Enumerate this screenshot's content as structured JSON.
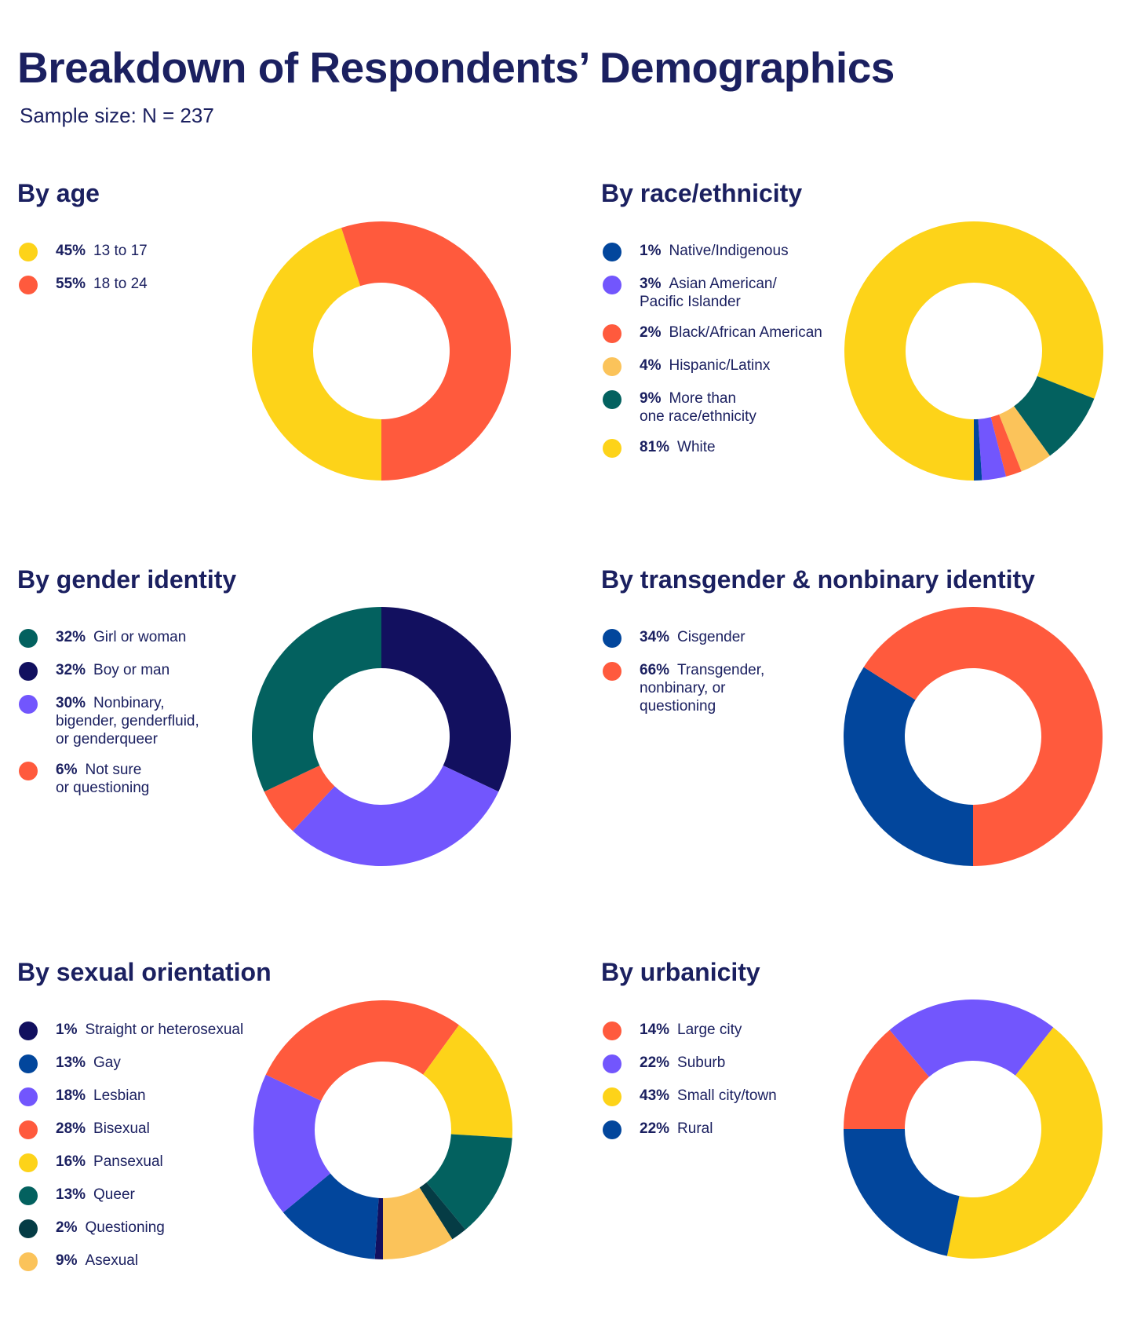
{
  "header": {
    "title": "Breakdown of Respondents’ Demographics",
    "subtitle": "Sample size: N = 237"
  },
  "chart_data": [
    {
      "id": "age",
      "type": "pie",
      "title": "By age",
      "slices": [
        {
          "pct": "45%",
          "label": "13 to 17",
          "value": 45,
          "color": "#fdd319"
        },
        {
          "pct": "55%",
          "label": "18 to 24",
          "value": 55,
          "color": "#ff5a3d"
        }
      ]
    },
    {
      "id": "race",
      "type": "pie",
      "title": "By race/ethnicity",
      "slices": [
        {
          "pct": "1%",
          "label": "Native/Indigenous",
          "value": 1,
          "color": "#02469c"
        },
        {
          "pct": "3%",
          "label": "Asian American/\nPacific Islander",
          "value": 3,
          "color": "#7256fd"
        },
        {
          "pct": "2%",
          "label": "Black/African American",
          "value": 2,
          "color": "#ff5a3d"
        },
        {
          "pct": "4%",
          "label": "Hispanic/Latinx",
          "value": 4,
          "color": "#fbc35a"
        },
        {
          "pct": "9%",
          "label": "More than\none race/ethnicity",
          "value": 9,
          "color": "#03615f"
        },
        {
          "pct": "81%",
          "label": "White",
          "value": 81,
          "color": "#fdd319"
        }
      ]
    },
    {
      "id": "gender",
      "type": "pie",
      "title": "By gender identity",
      "slices": [
        {
          "pct": "32%",
          "label": "Girl or woman",
          "value": 32,
          "color": "#03615f"
        },
        {
          "pct": "32%",
          "label": "Boy or man",
          "value": 32,
          "color": "#12105f"
        },
        {
          "pct": "30%",
          "label": "Nonbinary,\nbigender, genderfluid,\nor genderqueer",
          "value": 30,
          "color": "#7256fd"
        },
        {
          "pct": "6%",
          "label": "Not sure\nor questioning",
          "value": 6,
          "color": "#ff5a3d"
        }
      ]
    },
    {
      "id": "trans",
      "type": "pie",
      "title": "By transgender & nonbinary identity",
      "slices": [
        {
          "pct": "34%",
          "label": "Cisgender",
          "value": 34,
          "color": "#02469c"
        },
        {
          "pct": "66%",
          "label": "Transgender,\nnonbinary, or\nquestioning",
          "value": 66,
          "color": "#ff5a3d"
        }
      ]
    },
    {
      "id": "orientation",
      "type": "pie",
      "title": "By sexual orientation",
      "slices": [
        {
          "pct": "1%",
          "label": "Straight or heterosexual",
          "value": 1,
          "color": "#12105f"
        },
        {
          "pct": "13%",
          "label": "Gay",
          "value": 13,
          "color": "#02469c"
        },
        {
          "pct": "18%",
          "label": "Lesbian",
          "value": 18,
          "color": "#7256fd"
        },
        {
          "pct": "28%",
          "label": "Bisexual",
          "value": 28,
          "color": "#ff5a3d"
        },
        {
          "pct": "16%",
          "label": "Pansexual",
          "value": 16,
          "color": "#fdd319"
        },
        {
          "pct": "13%",
          "label": "Queer",
          "value": 13,
          "color": "#03615f"
        },
        {
          "pct": "2%",
          "label": "Questioning",
          "value": 2,
          "color": "#053c45"
        },
        {
          "pct": "9%",
          "label": "Asexual",
          "value": 9,
          "color": "#fbc35a"
        }
      ]
    },
    {
      "id": "urbanicity",
      "type": "pie",
      "title": "By urbanicity",
      "slices": [
        {
          "pct": "14%",
          "label": "Large city",
          "value": 14,
          "color": "#ff5a3d"
        },
        {
          "pct": "22%",
          "label": "Suburb",
          "value": 22,
          "color": "#7256fd"
        },
        {
          "pct": "43%",
          "label": "Small city/town",
          "value": 43,
          "color": "#fdd319"
        },
        {
          "pct": "22%",
          "label": "Rural",
          "value": 22,
          "color": "#02469c"
        }
      ]
    }
  ]
}
